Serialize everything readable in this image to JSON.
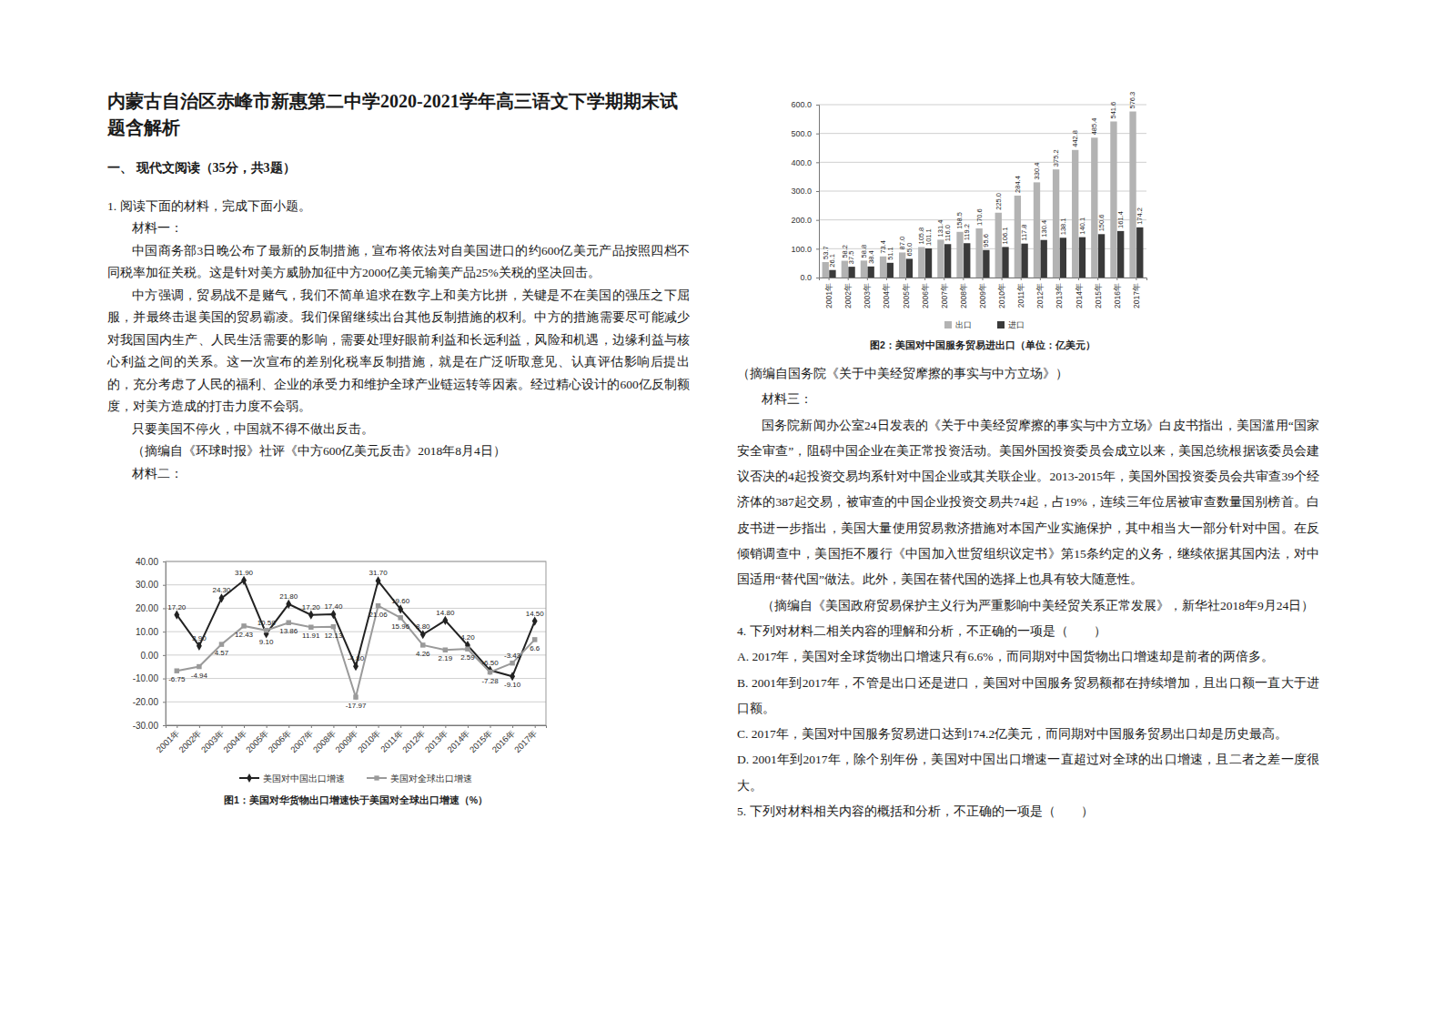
{
  "header": {
    "title": "内蒙古自治区赤峰市新惠第二中学2020-2021学年高三语文下学期期末试题含解析",
    "section": "一、 现代文阅读（35分，共3题）"
  },
  "question": "1. 阅读下面的材料，完成下面小题。",
  "material1": {
    "label": "材料一：",
    "paragraphs": [
      "中国商务部3日晚公布了最新的反制措施，宣布将依法对自美国进口的约600亿美元产品按照四档不同税率加征关税。这是针对美方威胁加征中方2000亿美元输美产品25%关税的坚决回击。",
      "中方强调，贸易战不是赌气，我们不简单追求在数字上和美方比拼，关键是不在美国的强压之下屈服，并最终击退美国的贸易霸凌。我们保留继续出台其他反制措施的权利。中方的措施需要尽可能减少对我国国内生产、人民生活需要的影响，需要处理好眼前利益和长远利益，风险和机遇，边缘利益与核心利益之间的关系。这一次宣布的差别化税率反制措施，就是在广泛听取意见、认真评估影响后提出的，充分考虑了人民的福利、企业的承受力和维护全球产业链运转等因素。经过精心设计的600亿反制额度，对美方造成的打击力度不会弱。",
      "只要美国不停火，中国就不得不做出反击。"
    ],
    "source": "（摘编自《环球时报》社评《中方600亿美元反击》2018年8月4日）"
  },
  "material2": {
    "label": "材料二：",
    "source": "（摘编自国务院《关于中美经贸摩擦的事实与中方立场》）"
  },
  "chart_data": [
    {
      "type": "line",
      "title": "图1：美国对华货物出口增速快于美国对全球出口增速（%）",
      "categories": [
        "2001年",
        "2002年",
        "2003年",
        "2004年",
        "2005年",
        "2006年",
        "2007年",
        "2008年",
        "2009年",
        "2010年",
        "2011年",
        "2012年",
        "2013年",
        "2014年",
        "2015年",
        "2016年",
        "2017年"
      ],
      "series": [
        {
          "name": "美国对中国出口增速",
          "color": "#222222",
          "marker": "diamond",
          "values": [
            17.2,
            3.9,
            24.3,
            31.9,
            9.1,
            21.8,
            17.2,
            17.4,
            -4.8,
            31.7,
            19.6,
            8.8,
            14.8,
            4.2,
            -6.5,
            -9.1,
            14.5
          ],
          "value_labels": [
            "17.20",
            "3.90",
            "24.30",
            "31.90",
            "9.10",
            "21.80",
            "17.20",
            "17.40",
            "-4.80",
            "31.70",
            "19.60",
            "8.80",
            "14.80",
            "4.20",
            "-6.50",
            "-9.10",
            "14.50"
          ]
        },
        {
          "name": "美国对全球出口增速",
          "color": "#9a9a9a",
          "marker": "square",
          "values": [
            -6.75,
            -4.94,
            4.57,
            12.43,
            10.58,
            13.86,
            11.91,
            12.13,
            -17.97,
            21.06,
            15.96,
            4.26,
            2.19,
            2.59,
            -7.28,
            -3.43,
            6.6
          ],
          "value_labels": [
            "-6.75",
            "-4.94",
            "4.57",
            "12.43",
            "10.58",
            "13.86",
            "11.91",
            "12.13",
            "-17.97",
            "21.06",
            "15.96",
            "4.26",
            "2.19",
            "2.59",
            "-7.28",
            "-3.43",
            "6.6"
          ]
        }
      ],
      "ylim": [
        -30,
        40
      ],
      "yticks": [
        {
          "value": -30,
          "label": "-30.00"
        },
        {
          "value": -20,
          "label": "-20.00"
        },
        {
          "value": -10,
          "label": "-10.00"
        },
        {
          "value": 0,
          "label": "0.00"
        },
        {
          "value": 10,
          "label": "10.00"
        },
        {
          "value": 20,
          "label": "20.00"
        },
        {
          "value": 30,
          "label": "30.00"
        },
        {
          "value": 40,
          "label": "40.00"
        }
      ],
      "grid": true,
      "legend": "bottom",
      "data_labels": true
    },
    {
      "type": "bar",
      "title": "图2：美国对中国服务贸易进出口（单位：亿美元）",
      "categories": [
        "2001年",
        "2002年",
        "2003年",
        "2004年",
        "2005年",
        "2006年",
        "2007年",
        "2008年",
        "2009年",
        "2010年",
        "2011年",
        "2012年",
        "2013年",
        "2014年",
        "2015年",
        "2016年",
        "2017年"
      ],
      "series": [
        {
          "name": "出口",
          "color": "#b3b3b3",
          "values": [
            53.7,
            58.2,
            58.8,
            73.4,
            87.0,
            105.8,
            131.4,
            158.5,
            170.6,
            225.0,
            284.4,
            330.4,
            375.2,
            442.8,
            485.4,
            541.6,
            576.3
          ],
          "value_labels": [
            "53.7",
            "58.2",
            "58.8",
            "73.4",
            "87.0",
            "105.8",
            "131.4",
            "158.5",
            "170.6",
            "225.0",
            "284.4",
            "330.4",
            "375.2",
            "442.8",
            "485.4",
            "541.6",
            "576.3"
          ]
        },
        {
          "name": "进口",
          "color": "#3a3a3a",
          "values": [
            26.1,
            37.5,
            38.4,
            51.1,
            65.0,
            101.1,
            116.0,
            119.2,
            95.6,
            106.1,
            117.8,
            130.4,
            138.1,
            140.1,
            150.6,
            161.4,
            174.2
          ],
          "value_labels": [
            "26.1",
            "37.5",
            "38.4",
            "51.1",
            "65.0",
            "101.1",
            "116.0",
            "119.2",
            "95.6",
            "106.1",
            "117.8",
            "130.4",
            "138.1",
            "140.1",
            "150.6",
            "161.4",
            "174.2"
          ]
        }
      ],
      "ylim": [
        0,
        600
      ],
      "yticks": [
        {
          "value": 0,
          "label": "0.0"
        },
        {
          "value": 100,
          "label": "100.0"
        },
        {
          "value": 200,
          "label": "200.0"
        },
        {
          "value": 300,
          "label": "300.0"
        },
        {
          "value": 400,
          "label": "400.0"
        },
        {
          "value": 500,
          "label": "500.0"
        },
        {
          "value": 600,
          "label": "600.0"
        }
      ],
      "grid": true,
      "legend": "bottom",
      "data_labels": true
    }
  ],
  "material3": {
    "label": "材料三：",
    "paragraphs": [
      "国务院新闻办公室24日发表的《关于中美经贸摩擦的事实与中方立场》白皮书指出，美国滥用“国家安全审查”，阻碍中国企业在美正常投资活动。美国外国投资委员会成立以来，美国总统根据该委员会建议否决的4起投资交易均系针对中国企业或其关联企业。2013-2015年，美国外国投资委员会共审查39个经济体的387起交易，被审查的中国企业投资交易共74起，占19%，连续三年位居被审查数量国别榜首。白皮书进一步指出，美国大量使用贸易救济措施对本国产业实施保护，其中相当大一部分针对中国。在反倾销调查中，美国拒不履行《中国加入世贸组织议定书》第15条约定的义务，继续依据其国内法，对中国适用“替代国”做法。此外，美国在替代国的选择上也具有较大随意性。"
    ],
    "source": "（摘编自《美国政府贸易保护主义行为严重影响中美经贸关系正常发展》，新华社2018年9月24日）"
  },
  "questions": [
    {
      "stem": "4. 下列对材料二相关内容的理解和分析，不正确的一项是（　　）",
      "options": [
        "A. 2017年，美国对全球货物出口增速只有6.6%，而同期对中国货物出口增速却是前者的两倍多。",
        "B. 2001年到2017年，不管是出口还是进口，美国对中国服务贸易额都在持续增加，且出口额一直大于进口额。",
        "C. 2017年，美国对中国服务贸易进口达到174.2亿美元，而同期对中国服务贸易出口却是历史最高。",
        "D. 2001年到2017年，除个别年份，美国对中国出口增速一直超过对全球的出口增速，且二者之差一度很大。"
      ]
    },
    {
      "stem": "5. 下列对材料相关内容的概括和分析，不正确的一项是（　　）"
    }
  ]
}
